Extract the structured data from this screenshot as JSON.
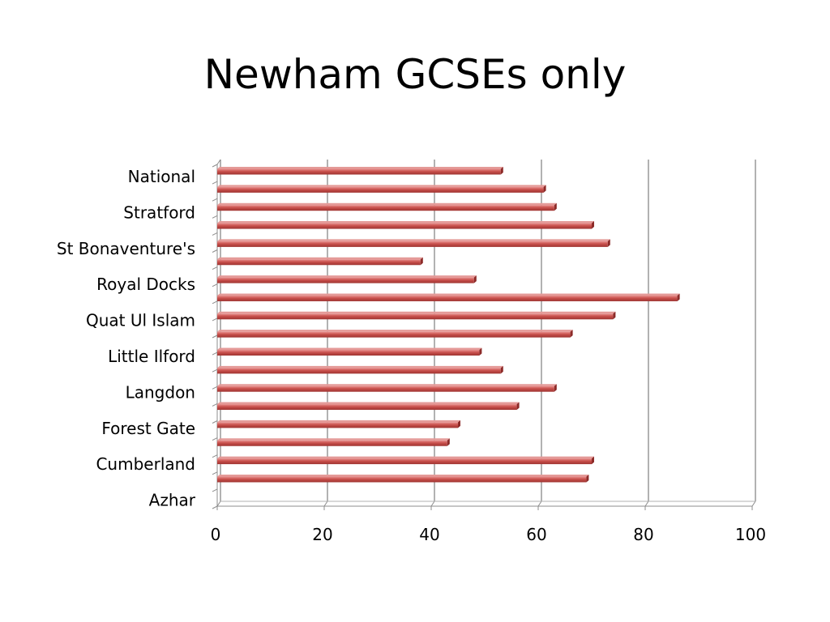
{
  "slide": {
    "title": "Newham GCSEs only"
  },
  "chart_data": {
    "type": "bar",
    "orientation": "horizontal",
    "title": "Newham GCSEs only",
    "xlabel": "",
    "ylabel": "",
    "xlim": [
      0,
      100
    ],
    "xticks": [
      0,
      20,
      40,
      60,
      80,
      100
    ],
    "grid": true,
    "legend": "none",
    "category_labels": [
      "National",
      "Stratford",
      "St Bonaventure's",
      "Royal Docks",
      "Quat Ul Islam",
      "Little Ilford",
      "Langdon",
      "Forest Gate",
      "Cumberland",
      "Azhar"
    ],
    "bars_top_to_bottom": [
      53,
      61,
      63,
      70,
      73,
      38,
      48,
      86,
      74,
      66,
      49,
      53,
      63,
      56,
      45,
      43,
      70,
      69
    ],
    "bar_color": "#c0504d"
  }
}
